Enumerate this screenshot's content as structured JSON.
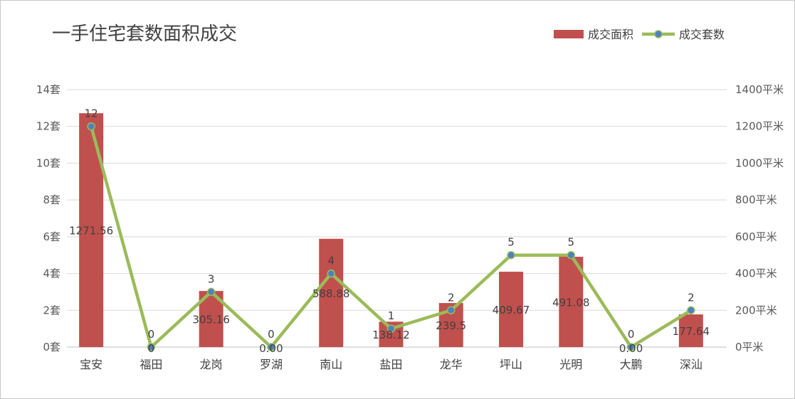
{
  "chart_data": {
    "type": "bar+line",
    "title": "一手住宅套数面积成交",
    "categories": [
      "宝安",
      "福田",
      "龙岗",
      "罗湖",
      "南山",
      "盐田",
      "龙华",
      "坪山",
      "光明",
      "大鹏",
      "深汕"
    ],
    "series": [
      {
        "name": "成交面积",
        "type": "bar",
        "axis": "right",
        "color": "#c0504d",
        "values": [
          1271.56,
          0,
          305.16,
          0,
          588.88,
          138.12,
          239.5,
          409.67,
          491.08,
          0,
          177.64
        ],
        "labels": [
          "1271.56",
          "0",
          "305.16",
          "0.00",
          "588.88",
          "138.12",
          "239.5",
          "409.67",
          "491.08",
          "0.00",
          "177.64"
        ]
      },
      {
        "name": "成交套数",
        "type": "line",
        "axis": "left",
        "color": "#9bbb59",
        "marker_color": "#4f81bd",
        "values": [
          12,
          0,
          3,
          0,
          4,
          1,
          2,
          5,
          5,
          0,
          2
        ],
        "labels": [
          "12",
          "0",
          "3",
          "0",
          "4",
          "1",
          "2",
          "5",
          "5",
          "0",
          "2"
        ]
      }
    ],
    "y_left": {
      "min": 0,
      "max": 14,
      "step": 2,
      "unit": "套"
    },
    "y_right": {
      "min": 0,
      "max": 1400,
      "step": 200,
      "unit": "平米"
    },
    "grid": true,
    "legend": "top-right"
  }
}
